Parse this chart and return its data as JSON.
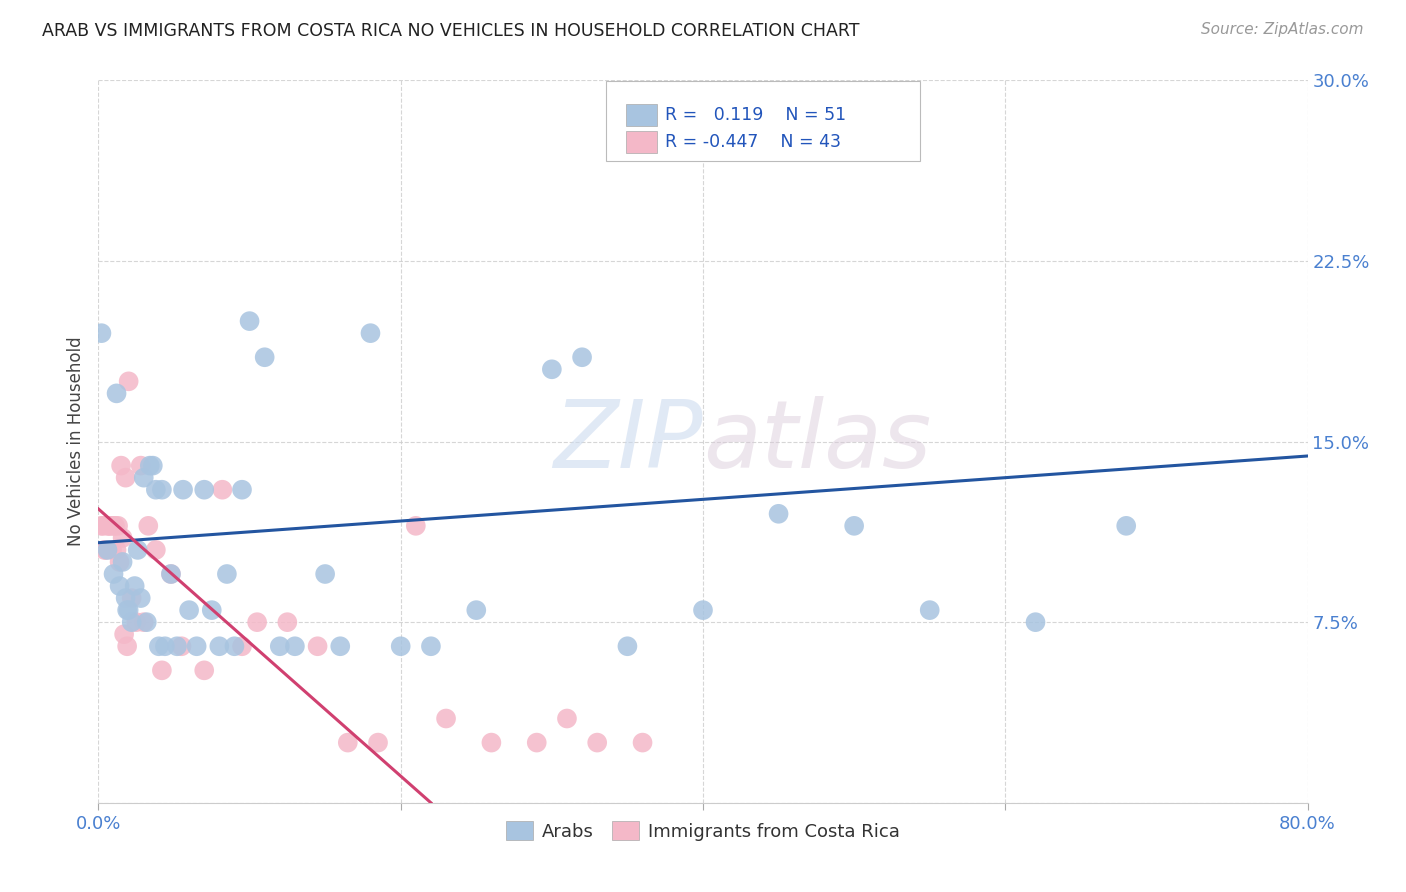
{
  "title": "ARAB VS IMMIGRANTS FROM COSTA RICA NO VEHICLES IN HOUSEHOLD CORRELATION CHART",
  "source": "Source: ZipAtlas.com",
  "ylabel": "No Vehicles in Household",
  "x_min": 0.0,
  "x_max": 0.8,
  "y_min": 0.0,
  "y_max": 0.3,
  "x_ticks": [
    0.0,
    0.2,
    0.4,
    0.6,
    0.8
  ],
  "y_ticks": [
    0.0,
    0.075,
    0.15,
    0.225,
    0.3
  ],
  "arab_color": "#a8c4e0",
  "costa_rica_color": "#f4b8c8",
  "arab_line_color": "#2355a0",
  "costa_rica_line_color": "#d04070",
  "watermark_zip": "ZIP",
  "watermark_atlas": "atlas",
  "legend_label1": "Arabs",
  "legend_label2": "Immigrants from Costa Rica",
  "arab_line_x0": 0.0,
  "arab_line_y0": 0.108,
  "arab_line_x1": 0.8,
  "arab_line_y1": 0.144,
  "cr_line_x0": 0.0,
  "cr_line_y0": 0.122,
  "cr_line_x1": 0.22,
  "cr_line_y1": 0.0,
  "arab_points_x": [
    0.002,
    0.006,
    0.01,
    0.012,
    0.014,
    0.016,
    0.018,
    0.019,
    0.02,
    0.022,
    0.024,
    0.026,
    0.028,
    0.03,
    0.032,
    0.034,
    0.036,
    0.038,
    0.04,
    0.042,
    0.044,
    0.048,
    0.052,
    0.056,
    0.06,
    0.065,
    0.07,
    0.075,
    0.08,
    0.085,
    0.09,
    0.095,
    0.1,
    0.11,
    0.12,
    0.13,
    0.15,
    0.16,
    0.18,
    0.2,
    0.22,
    0.25,
    0.3,
    0.35,
    0.4,
    0.45,
    0.5,
    0.55,
    0.62,
    0.68,
    0.32
  ],
  "arab_points_y": [
    0.195,
    0.105,
    0.095,
    0.17,
    0.09,
    0.1,
    0.085,
    0.08,
    0.08,
    0.075,
    0.09,
    0.105,
    0.085,
    0.135,
    0.075,
    0.14,
    0.14,
    0.13,
    0.065,
    0.13,
    0.065,
    0.095,
    0.065,
    0.13,
    0.08,
    0.065,
    0.13,
    0.08,
    0.065,
    0.095,
    0.065,
    0.13,
    0.2,
    0.185,
    0.065,
    0.065,
    0.095,
    0.065,
    0.195,
    0.065,
    0.065,
    0.08,
    0.18,
    0.065,
    0.08,
    0.12,
    0.115,
    0.08,
    0.075,
    0.115,
    0.185
  ],
  "costa_rica_points_x": [
    0.002,
    0.003,
    0.004,
    0.005,
    0.006,
    0.007,
    0.008,
    0.009,
    0.01,
    0.011,
    0.012,
    0.013,
    0.014,
    0.015,
    0.016,
    0.017,
    0.018,
    0.019,
    0.02,
    0.022,
    0.025,
    0.028,
    0.03,
    0.033,
    0.038,
    0.042,
    0.048,
    0.055,
    0.07,
    0.082,
    0.095,
    0.105,
    0.125,
    0.145,
    0.165,
    0.185,
    0.21,
    0.23,
    0.26,
    0.29,
    0.31,
    0.33,
    0.36
  ],
  "costa_rica_points_y": [
    0.115,
    0.115,
    0.105,
    0.105,
    0.115,
    0.115,
    0.115,
    0.105,
    0.115,
    0.115,
    0.105,
    0.115,
    0.1,
    0.14,
    0.11,
    0.07,
    0.135,
    0.065,
    0.175,
    0.085,
    0.075,
    0.14,
    0.075,
    0.115,
    0.105,
    0.055,
    0.095,
    0.065,
    0.055,
    0.13,
    0.065,
    0.075,
    0.075,
    0.065,
    0.025,
    0.025,
    0.115,
    0.035,
    0.025,
    0.025,
    0.035,
    0.025,
    0.025
  ]
}
